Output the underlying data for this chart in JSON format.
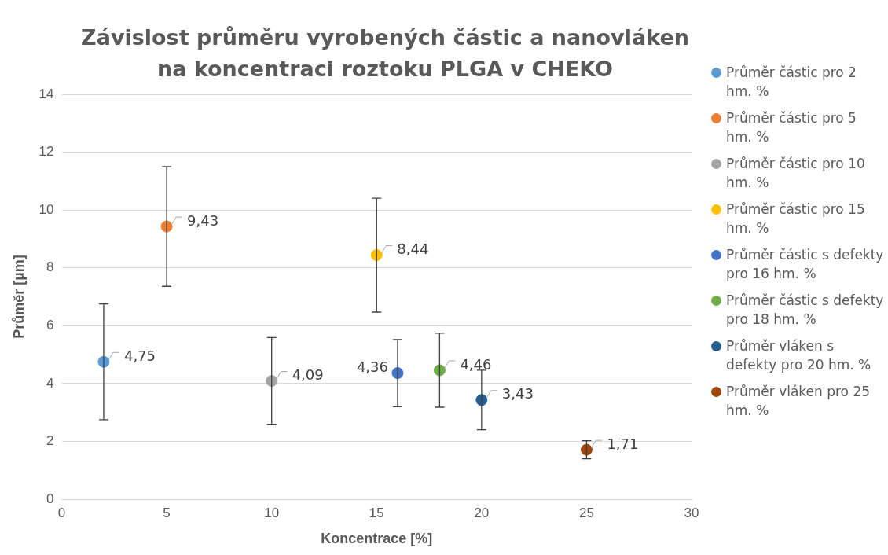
{
  "chart_data": {
    "type": "scatter",
    "title": "Závislost průměru vyrobených částic a nanovláken na koncentraci roztoku PLGA v CHEKO",
    "xlabel": "Koncentrace [%]",
    "ylabel": "Průměr [µm]",
    "xlim": [
      0,
      30
    ],
    "xticks": [
      0,
      5,
      10,
      15,
      20,
      25,
      30
    ],
    "ylim": [
      0,
      14
    ],
    "yticks": [
      0,
      2,
      4,
      6,
      8,
      10,
      12,
      14
    ],
    "grid": "y",
    "legend": "right",
    "marker": "circle",
    "series": [
      {
        "name": "Průměr částic pro 2 hm. %",
        "color": "#5b9bd5",
        "x": [
          2
        ],
        "values": [
          4.75
        ],
        "errors": [
          2.0
        ],
        "value_labels": [
          "4,75"
        ]
      },
      {
        "name": "Průměr částic pro 5 hm. %",
        "color": "#ed7d31",
        "x": [
          5
        ],
        "values": [
          9.43
        ],
        "errors": [
          2.07
        ],
        "value_labels": [
          "9,43"
        ]
      },
      {
        "name": "Průměr částic pro 10 hm. %",
        "color": "#a5a5a5",
        "x": [
          10
        ],
        "values": [
          4.09
        ],
        "errors": [
          1.5
        ],
        "value_labels": [
          "4,09"
        ]
      },
      {
        "name": "Průměr částic pro 15 hm. %",
        "color": "#ffc000",
        "x": [
          15
        ],
        "values": [
          8.44
        ],
        "errors": [
          1.97
        ],
        "value_labels": [
          "8,44"
        ]
      },
      {
        "name": "Průměr částic s defekty pro 16 hm. %",
        "color": "#4472c4",
        "x": [
          16
        ],
        "values": [
          4.36
        ],
        "errors": [
          1.16
        ],
        "value_labels": [
          "4,36"
        ]
      },
      {
        "name": "Průměr částic s defekty pro 18 hm. %",
        "color": "#70ad47",
        "x": [
          18
        ],
        "values": [
          4.46
        ],
        "errors": [
          1.28
        ],
        "value_labels": [
          "4,46"
        ]
      },
      {
        "name": "Průměr vláken s defekty pro 20 hm. %",
        "color": "#255e91",
        "x": [
          20
        ],
        "values": [
          3.43
        ],
        "errors": [
          1.03
        ],
        "value_labels": [
          "3,43"
        ]
      },
      {
        "name": "Průměr vláken pro 25 hm. %",
        "color": "#9e480e",
        "x": [
          25
        ],
        "values": [
          1.71
        ],
        "errors": [
          0.31
        ],
        "value_labels": [
          "1,71"
        ]
      }
    ]
  }
}
